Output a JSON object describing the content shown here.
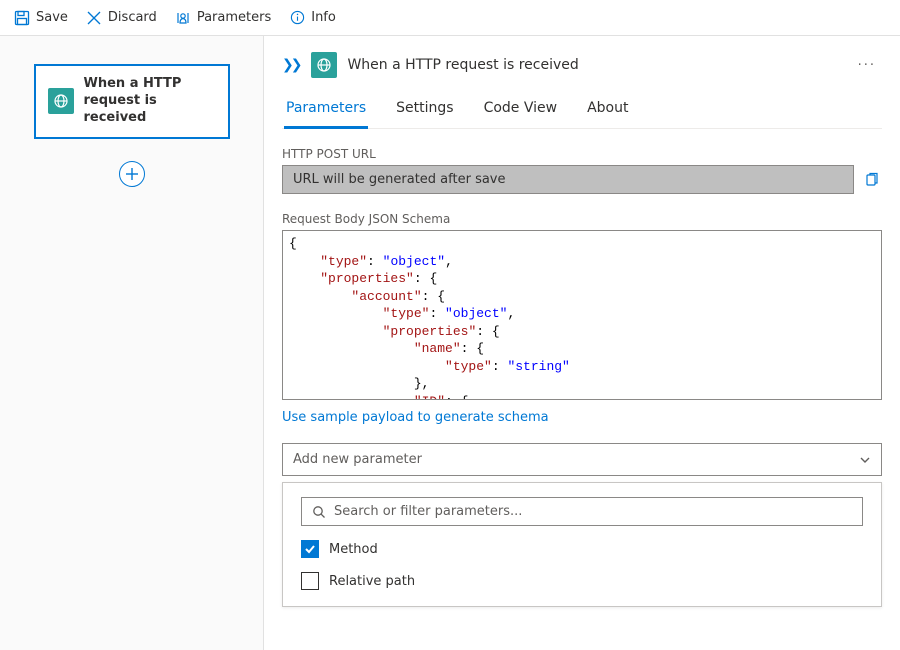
{
  "colors": {
    "accent": "#0078d4",
    "trigger_icon_bg": "#2aa19b",
    "url_field_bg": "#bfbfbf",
    "border": "#8a8886",
    "muted_text": "#605e5c"
  },
  "toolbar": {
    "save": {
      "label": "Save"
    },
    "discard": {
      "label": "Discard"
    },
    "parameters": {
      "label": "Parameters"
    },
    "info": {
      "label": "Info"
    }
  },
  "canvas": {
    "trigger_title": "When a HTTP request is received"
  },
  "detail": {
    "title": "When a HTTP request is received",
    "tabs": {
      "parameters": "Parameters",
      "settings": "Settings",
      "code_view": "Code View",
      "about": "About",
      "active": "parameters"
    },
    "http_post_url": {
      "label": "HTTP POST URL",
      "value": "URL will be generated after save"
    },
    "schema": {
      "label": "Request Body JSON Schema",
      "sample_link": "Use sample payload to generate schema",
      "tokens": [
        [
          "plain",
          "{\n    "
        ],
        [
          "key",
          "\"type\""
        ],
        [
          "plain",
          ": "
        ],
        [
          "str",
          "\"object\""
        ],
        [
          "plain",
          ",\n    "
        ],
        [
          "key",
          "\"properties\""
        ],
        [
          "plain",
          ": {\n        "
        ],
        [
          "key",
          "\"account\""
        ],
        [
          "plain",
          ": {\n            "
        ],
        [
          "key",
          "\"type\""
        ],
        [
          "plain",
          ": "
        ],
        [
          "str",
          "\"object\""
        ],
        [
          "plain",
          ",\n            "
        ],
        [
          "key",
          "\"properties\""
        ],
        [
          "plain",
          ": {\n                "
        ],
        [
          "key",
          "\"name\""
        ],
        [
          "plain",
          ": {\n                    "
        ],
        [
          "key",
          "\"type\""
        ],
        [
          "plain",
          ": "
        ],
        [
          "str",
          "\"string\""
        ],
        [
          "plain",
          "\n                },\n                "
        ],
        [
          "key",
          "\"ID\""
        ],
        [
          "plain",
          ": {\n"
        ]
      ]
    },
    "add_parameter": {
      "placeholder": "Add new parameter",
      "search_placeholder": "Search or filter parameters...",
      "options": [
        {
          "key": "method",
          "label": "Method",
          "checked": true
        },
        {
          "key": "relative_path",
          "label": "Relative path",
          "checked": false
        }
      ]
    }
  }
}
